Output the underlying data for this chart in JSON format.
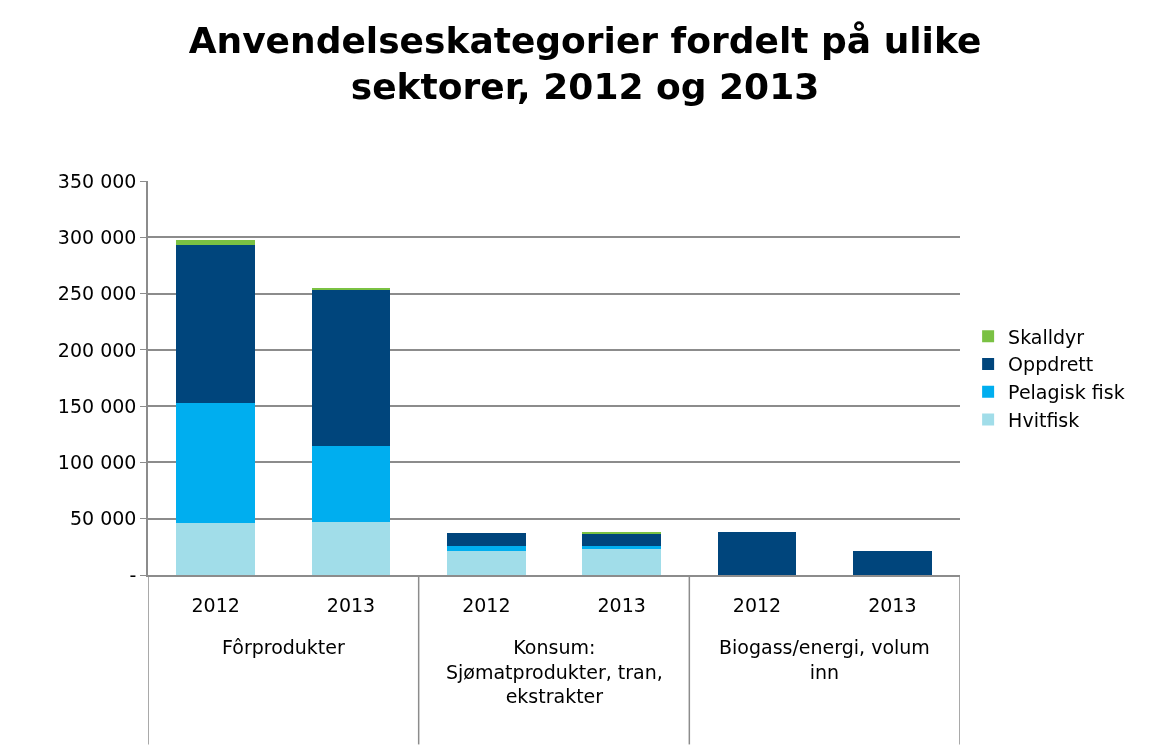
{
  "chart_data": {
    "type": "bar",
    "stacked": true,
    "title": "Anvendelseskategorier fordelt på ulike sektorer, 2012 og 2013",
    "categories": [
      "2012",
      "2013",
      "2012",
      "2013",
      "2012",
      "2013"
    ],
    "series": [
      {
        "name": "Hvitfisk",
        "color": "#a1dde9",
        "values": [
          46000,
          47000,
          21000,
          23000,
          0,
          0
        ]
      },
      {
        "name": "Pelagisk fisk",
        "color": "#00aeef",
        "values": [
          107000,
          68000,
          5000,
          3000,
          0,
          0
        ]
      },
      {
        "name": "Oppdrett",
        "color": "#00457c",
        "values": [
          140000,
          139000,
          11000,
          11000,
          38000,
          21000
        ]
      },
      {
        "name": "Skalldyr",
        "color": "#7ac143",
        "values": [
          5000,
          1000,
          0,
          1000,
          0,
          0
        ]
      }
    ],
    "annotations": [
      "Fôrprodukter",
      "Konsum: Sjømatprodukter, tran, ekstrakter",
      "Biogass/energi, volum inn"
    ],
    "ylim": [
      0,
      350000
    ],
    "yticks": [
      {
        "value": 0,
        "label": "-"
      },
      {
        "value": 50000,
        "label": "50 000"
      },
      {
        "value": 100000,
        "label": "100 000"
      },
      {
        "value": 150000,
        "label": "150 000"
      },
      {
        "value": 200000,
        "label": "200 000"
      },
      {
        "value": 250000,
        "label": "250 000"
      },
      {
        "value": 300000,
        "label": "300 000"
      },
      {
        "value": 350000,
        "label": "350 000"
      }
    ],
    "grid": "y",
    "legend": "right"
  }
}
